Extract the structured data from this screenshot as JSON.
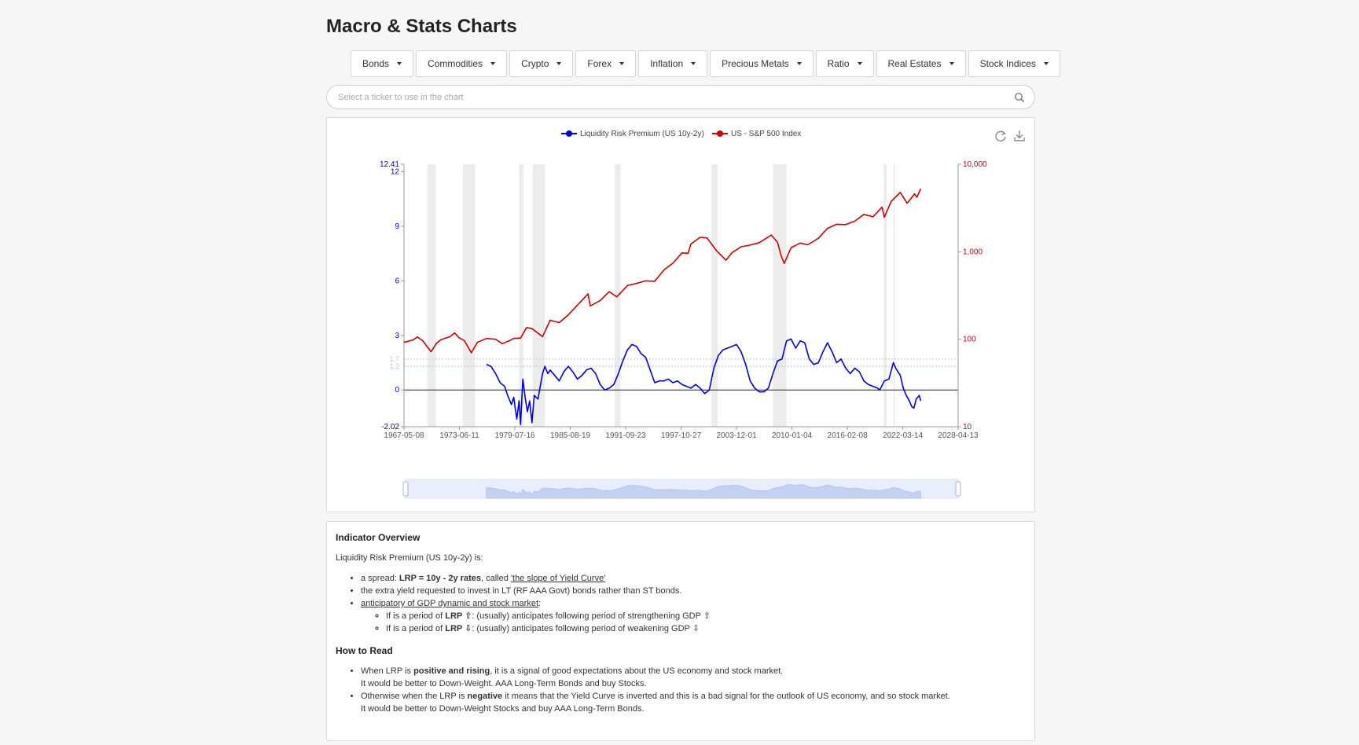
{
  "page": {
    "title": "Macro & Stats Charts"
  },
  "menu": [
    {
      "label": "Bonds",
      "name": "bonds"
    },
    {
      "label": "Commodities",
      "name": "commodities"
    },
    {
      "label": "Crypto",
      "name": "crypto"
    },
    {
      "label": "Forex",
      "name": "forex"
    },
    {
      "label": "Inflation",
      "name": "inflation"
    },
    {
      "label": "Precious Metals",
      "name": "precious-metals"
    },
    {
      "label": "Ratio",
      "name": "ratio"
    },
    {
      "label": "Real Estates",
      "name": "real-estates"
    },
    {
      "label": "Stock Indices",
      "name": "stock-indices"
    }
  ],
  "search": {
    "placeholder": "Select a ticker to use in the chart",
    "icon": "search-icon"
  },
  "toolbar": {
    "refresh_icon": "refresh-icon",
    "download_icon": "download-icon"
  },
  "colors": {
    "lrp": "#0000dd",
    "sp500": "#cc0000",
    "recession": "#ececec"
  },
  "chart_data": {
    "type": "line",
    "legend": [
      {
        "name": "Liquidity Risk Premium (US 10y-2y)",
        "color": "#0000dd"
      },
      {
        "name": "US - S&P 500 Index",
        "color": "#cc0000"
      }
    ],
    "legend_position": "top-center",
    "x_ticks": [
      "1967-05-08",
      "1973-06-11",
      "1979-07-16",
      "1985-08-19",
      "1991-09-23",
      "1997-10-27",
      "2003-12-01",
      "2010-01-04",
      "2016-02-08",
      "2022-03-14",
      "2028-04-13"
    ],
    "x_range": [
      "1967-05-08",
      "2028-04-13"
    ],
    "y_left": {
      "min": -2.02,
      "max": 12.41,
      "ticks": [
        "12.41",
        "12",
        "9",
        "6",
        "3",
        "0",
        "-2.02"
      ],
      "ref_lines": [
        "1.7",
        "1.3"
      ]
    },
    "y_right": {
      "scale": "log",
      "min": 10,
      "max": 10000,
      "ticks": [
        "10,000",
        "1,000",
        "100",
        "10"
      ]
    },
    "recessions": [
      [
        "1969-12-01",
        "1970-11-01"
      ],
      [
        "1973-11-01",
        "1975-03-01"
      ],
      [
        "1980-01-01",
        "1980-07-01"
      ],
      [
        "1981-07-01",
        "1982-11-01"
      ],
      [
        "1990-07-01",
        "1991-03-01"
      ],
      [
        "2001-03-01",
        "2001-11-01"
      ],
      [
        "2007-12-01",
        "2009-06-01"
      ],
      [
        "2020-02-01",
        "2020-04-01"
      ]
    ],
    "series": [
      {
        "name": "Liquidity Risk Premium (US 10y-2y)",
        "axis": "left",
        "points": [
          [
            "1976-06-01",
            1.4
          ],
          [
            "1976-12-01",
            1.3
          ],
          [
            "1977-06-01",
            0.9
          ],
          [
            "1977-12-01",
            0.4
          ],
          [
            "1978-06-01",
            0.2
          ],
          [
            "1978-10-01",
            -0.3
          ],
          [
            "1979-03-01",
            -0.8
          ],
          [
            "1979-06-01",
            -0.4
          ],
          [
            "1979-10-01",
            -1.6
          ],
          [
            "1980-01-01",
            -0.6
          ],
          [
            "1980-03-01",
            -1.9
          ],
          [
            "1980-06-01",
            0.6
          ],
          [
            "1980-09-01",
            -0.4
          ],
          [
            "1980-12-01",
            -1.2
          ],
          [
            "1981-03-01",
            -0.6
          ],
          [
            "1981-06-01",
            -1.8
          ],
          [
            "1981-09-01",
            -0.3
          ],
          [
            "1982-02-01",
            -0.5
          ],
          [
            "1982-05-01",
            0.2
          ],
          [
            "1982-08-01",
            0.9
          ],
          [
            "1982-11-01",
            1.3
          ],
          [
            "1983-03-01",
            0.9
          ],
          [
            "1983-06-01",
            1.1
          ],
          [
            "1983-12-01",
            0.8
          ],
          [
            "1984-06-01",
            0.5
          ],
          [
            "1984-12-01",
            1.0
          ],
          [
            "1985-06-01",
            1.3
          ],
          [
            "1985-12-01",
            1.0
          ],
          [
            "1986-06-01",
            0.6
          ],
          [
            "1986-12-01",
            0.8
          ],
          [
            "1987-06-01",
            1.1
          ],
          [
            "1987-12-01",
            1.2
          ],
          [
            "1988-06-01",
            0.9
          ],
          [
            "1988-12-01",
            0.3
          ],
          [
            "1989-06-01",
            0.0
          ],
          [
            "1989-12-01",
            0.1
          ],
          [
            "1990-06-01",
            0.3
          ],
          [
            "1990-12-01",
            0.9
          ],
          [
            "1991-06-01",
            1.6
          ],
          [
            "1991-12-01",
            2.2
          ],
          [
            "1992-06-01",
            2.5
          ],
          [
            "1992-12-01",
            2.4
          ],
          [
            "1993-06-01",
            2.0
          ],
          [
            "1993-12-01",
            1.8
          ],
          [
            "1994-06-01",
            1.1
          ],
          [
            "1994-12-01",
            0.4
          ],
          [
            "1995-06-01",
            0.5
          ],
          [
            "1995-12-01",
            0.5
          ],
          [
            "1996-06-01",
            0.6
          ],
          [
            "1996-12-01",
            0.4
          ],
          [
            "1997-06-01",
            0.5
          ],
          [
            "1997-12-01",
            0.3
          ],
          [
            "1998-06-01",
            0.2
          ],
          [
            "1998-12-01",
            0.1
          ],
          [
            "1999-06-01",
            0.3
          ],
          [
            "1999-12-01",
            0.1
          ],
          [
            "2000-06-01",
            -0.2
          ],
          [
            "2000-12-01",
            0.0
          ],
          [
            "2001-06-01",
            1.2
          ],
          [
            "2001-12-01",
            1.9
          ],
          [
            "2002-06-01",
            2.2
          ],
          [
            "2002-12-01",
            2.3
          ],
          [
            "2003-06-01",
            2.4
          ],
          [
            "2003-12-01",
            2.5
          ],
          [
            "2004-06-01",
            2.1
          ],
          [
            "2004-12-01",
            1.4
          ],
          [
            "2005-06-01",
            0.5
          ],
          [
            "2005-12-01",
            0.1
          ],
          [
            "2006-06-01",
            -0.1
          ],
          [
            "2006-12-01",
            -0.1
          ],
          [
            "2007-06-01",
            0.1
          ],
          [
            "2007-12-01",
            0.9
          ],
          [
            "2008-06-01",
            1.6
          ],
          [
            "2008-12-01",
            1.7
          ],
          [
            "2009-06-01",
            2.7
          ],
          [
            "2009-12-01",
            2.8
          ],
          [
            "2010-06-01",
            2.3
          ],
          [
            "2010-12-01",
            2.7
          ],
          [
            "2011-06-01",
            2.6
          ],
          [
            "2011-12-01",
            1.7
          ],
          [
            "2012-06-01",
            1.4
          ],
          [
            "2012-12-01",
            1.5
          ],
          [
            "2013-06-01",
            2.1
          ],
          [
            "2013-12-01",
            2.6
          ],
          [
            "2014-06-01",
            2.1
          ],
          [
            "2014-12-01",
            1.5
          ],
          [
            "2015-06-01",
            1.7
          ],
          [
            "2015-12-01",
            1.2
          ],
          [
            "2016-06-01",
            0.9
          ],
          [
            "2016-12-01",
            1.2
          ],
          [
            "2017-06-01",
            1.0
          ],
          [
            "2017-12-01",
            0.5
          ],
          [
            "2018-06-01",
            0.3
          ],
          [
            "2018-12-01",
            0.2
          ],
          [
            "2019-06-01",
            0.1
          ],
          [
            "2019-09-01",
            0.0
          ],
          [
            "2020-03-01",
            0.5
          ],
          [
            "2020-09-01",
            0.6
          ],
          [
            "2021-03-01",
            1.5
          ],
          [
            "2021-06-01",
            1.2
          ],
          [
            "2021-12-01",
            0.8
          ],
          [
            "2022-04-01",
            0.1
          ],
          [
            "2022-08-01",
            -0.3
          ],
          [
            "2022-12-01",
            -0.6
          ],
          [
            "2023-03-01",
            -0.9
          ],
          [
            "2023-06-01",
            -1.0
          ],
          [
            "2023-09-01",
            -0.5
          ],
          [
            "2024-01-01",
            -0.3
          ],
          [
            "2024-03-01",
            -0.6
          ]
        ]
      },
      {
        "name": "US - S&P 500 Index",
        "axis": "right",
        "points": [
          [
            "1967-05-01",
            92
          ],
          [
            "1968-05-01",
            98
          ],
          [
            "1968-11-01",
            106
          ],
          [
            "1969-06-01",
            96
          ],
          [
            "1970-05-01",
            72
          ],
          [
            "1970-12-01",
            90
          ],
          [
            "1971-06-01",
            99
          ],
          [
            "1972-06-01",
            107
          ],
          [
            "1972-12-01",
            118
          ],
          [
            "1973-06-01",
            104
          ],
          [
            "1974-01-01",
            96
          ],
          [
            "1974-10-01",
            70
          ],
          [
            "1975-06-01",
            92
          ],
          [
            "1976-06-01",
            102
          ],
          [
            "1977-06-01",
            100
          ],
          [
            "1978-03-01",
            89
          ],
          [
            "1978-12-01",
            96
          ],
          [
            "1979-06-01",
            102
          ],
          [
            "1980-03-01",
            103
          ],
          [
            "1980-11-01",
            136
          ],
          [
            "1981-06-01",
            132
          ],
          [
            "1982-08-01",
            107
          ],
          [
            "1983-06-01",
            165
          ],
          [
            "1984-06-01",
            155
          ],
          [
            "1985-06-01",
            190
          ],
          [
            "1986-06-01",
            245
          ],
          [
            "1987-08-01",
            330
          ],
          [
            "1987-11-01",
            240
          ],
          [
            "1988-12-01",
            277
          ],
          [
            "1989-12-01",
            350
          ],
          [
            "1990-10-01",
            305
          ],
          [
            "1991-12-01",
            410
          ],
          [
            "1992-12-01",
            435
          ],
          [
            "1993-12-01",
            465
          ],
          [
            "1994-12-01",
            460
          ],
          [
            "1995-12-01",
            615
          ],
          [
            "1996-12-01",
            740
          ],
          [
            "1997-12-01",
            970
          ],
          [
            "1998-08-01",
            960
          ],
          [
            "1998-12-01",
            1230
          ],
          [
            "1999-12-01",
            1460
          ],
          [
            "2000-09-01",
            1440
          ],
          [
            "2001-09-01",
            1040
          ],
          [
            "2002-10-01",
            800
          ],
          [
            "2003-06-01",
            975
          ],
          [
            "2004-06-01",
            1140
          ],
          [
            "2005-06-01",
            1190
          ],
          [
            "2006-06-01",
            1270
          ],
          [
            "2007-10-01",
            1550
          ],
          [
            "2008-06-01",
            1280
          ],
          [
            "2008-11-01",
            890
          ],
          [
            "2009-03-01",
            735
          ],
          [
            "2009-12-01",
            1115
          ],
          [
            "2010-12-01",
            1257
          ],
          [
            "2011-10-01",
            1200
          ],
          [
            "2012-12-01",
            1426
          ],
          [
            "2013-12-01",
            1848
          ],
          [
            "2014-12-01",
            2058
          ],
          [
            "2015-12-01",
            2043
          ],
          [
            "2016-12-01",
            2238
          ],
          [
            "2017-12-01",
            2673
          ],
          [
            "2018-12-01",
            2506
          ],
          [
            "2019-12-01",
            3230
          ],
          [
            "2020-03-01",
            2480
          ],
          [
            "2020-12-01",
            3756
          ],
          [
            "2021-12-01",
            4766
          ],
          [
            "2022-09-01",
            3585
          ],
          [
            "2022-12-01",
            3839
          ],
          [
            "2023-07-01",
            4588
          ],
          [
            "2023-10-01",
            4193
          ],
          [
            "2024-03-01",
            5250
          ]
        ]
      }
    ]
  },
  "overview": {
    "title": "Indicator Overview",
    "intro": "Liquidity Risk Premium (US 10y-2y) is:",
    "b1_pre": "a spread: ",
    "b1_bold": "LRP = 10y - 2y rates",
    "b1_mid": ", called ",
    "b1_link": "'the slope of Yield Curve'",
    "b2": "the extra yield requested to invest in LT (RF AAA Govt) bonds rather than ST bonds.",
    "b3_link": "anticipatory of GDP dynamic and stock market",
    "b3_post": ":",
    "s1_pre": "If is a period of ",
    "s1_bold": "LRP ⇧",
    "s1_post": ": (usually) anticipates following period of strengthening GDP ⇧",
    "s2_pre": "If is a period of ",
    "s2_bold": "LRP ⇩",
    "s2_post": ": (usually) anticipates following period of weakening GDP ⇩"
  },
  "howto": {
    "title": "How to Read",
    "r1_pre": "When LRP is ",
    "r1_bold": "positive and rising",
    "r1_post": ", it is a signal of good expectations about the US economy and stock market.",
    "r1_line2": "It would be better to Down-Weight. AAA Long-Term Bonds and buy Stocks.",
    "r2_pre": "Otherwise when the LRP is ",
    "r2_bold": "negative",
    "r2_post": " it means that the Yield Curve is inverted and this is a bad signal for the outlook of US economy, and so stock market.",
    "r2_line2": "It would be better to Down-Weight Stocks and buy AAA Long-Term Bonds."
  }
}
